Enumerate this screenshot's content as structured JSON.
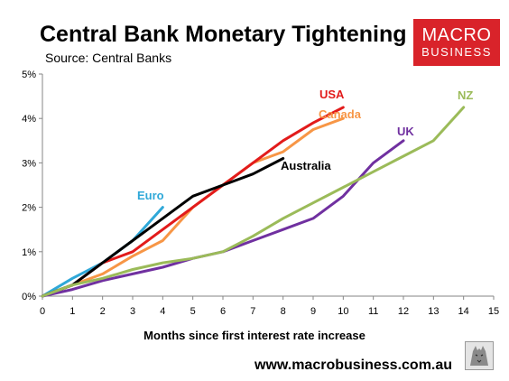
{
  "header": {
    "title": "Central Bank Monetary Tightening",
    "subtitle": "Source: Central Banks"
  },
  "logo": {
    "line1": "MACRO",
    "line2": "BUSINESS"
  },
  "footer": {
    "website": "www.macrobusiness.com.au"
  },
  "chart_data": {
    "type": "line",
    "title": "Central Bank Monetary Tightening",
    "subtitle": "Source: Central Banks",
    "xlabel": "Months since first interest rate increase",
    "ylabel": "",
    "xlim": [
      0,
      15
    ],
    "ylim": [
      0,
      5
    ],
    "x_ticks": [
      "0",
      "1",
      "2",
      "3",
      "4",
      "5",
      "6",
      "7",
      "8",
      "9",
      "10",
      "11",
      "12",
      "13",
      "14",
      "15"
    ],
    "y_ticks": [
      "0%",
      "1%",
      "2%",
      "3%",
      "4%",
      "5%"
    ],
    "grid": false,
    "legend": "inline labels",
    "series": [
      {
        "name": "Euro",
        "color": "#2fa8d8",
        "x": [
          0,
          1,
          2,
          3,
          4
        ],
        "y": [
          0,
          0.4,
          0.75,
          1.25,
          2.0
        ]
      },
      {
        "name": "Canada",
        "color": "#f79646",
        "x": [
          0,
          1,
          2,
          3,
          4,
          5,
          6,
          7,
          8,
          9,
          10
        ],
        "y": [
          0,
          0.25,
          0.5,
          0.9,
          1.25,
          2.0,
          2.5,
          3.0,
          3.25,
          3.75,
          4.0
        ]
      },
      {
        "name": "USA",
        "color": "#e21b1b",
        "x": [
          0,
          1,
          2,
          3,
          4,
          5,
          6,
          7,
          8,
          9,
          10
        ],
        "y": [
          0,
          0.25,
          0.75,
          1.0,
          1.5,
          2.0,
          2.5,
          3.0,
          3.5,
          3.9,
          4.25
        ]
      },
      {
        "name": "Australia",
        "color": "#000000",
        "x": [
          0,
          1,
          2,
          3,
          4,
          5,
          6,
          7,
          8
        ],
        "y": [
          0,
          0.25,
          0.75,
          1.25,
          1.75,
          2.25,
          2.5,
          2.75,
          3.1
        ]
      },
      {
        "name": "UK",
        "color": "#7030a0",
        "x": [
          0,
          1,
          2,
          3,
          4,
          5,
          6,
          7,
          8,
          9,
          10,
          11,
          12
        ],
        "y": [
          0,
          0.15,
          0.35,
          0.5,
          0.65,
          0.85,
          1.0,
          1.25,
          1.5,
          1.75,
          2.25,
          3.0,
          3.5
        ]
      },
      {
        "name": "NZ",
        "color": "#9bbb59",
        "x": [
          0,
          1,
          2,
          3,
          4,
          5,
          6,
          7,
          8,
          9,
          10,
          11,
          12,
          13,
          14
        ],
        "y": [
          0,
          0.25,
          0.4,
          0.6,
          0.75,
          0.85,
          1.0,
          1.35,
          1.75,
          2.1,
          2.45,
          2.8,
          3.15,
          3.5,
          4.25
        ]
      }
    ]
  }
}
